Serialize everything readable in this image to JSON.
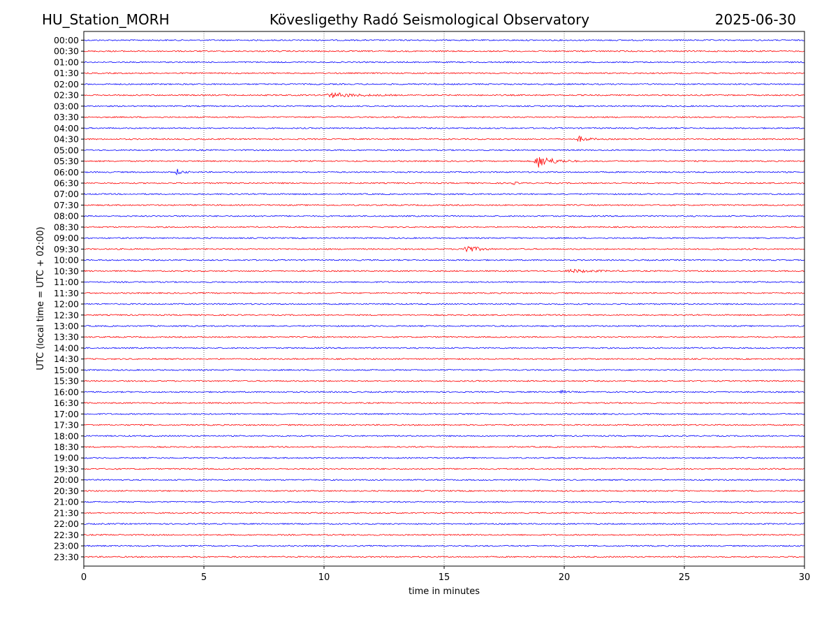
{
  "header": {
    "station": "HU_Station_MORH",
    "observatory": "Kövesligethy Radó Seismological Observatory",
    "date": "2025-06-30"
  },
  "chart_data": {
    "type": "line",
    "title": "Kövesligethy Radó Seismological Observatory",
    "xlabel": "time in minutes",
    "ylabel": "UTC (local time = UTC + 02:00)",
    "xlim": [
      0,
      30
    ],
    "x_ticks": [
      "0",
      "5",
      "10",
      "15",
      "20",
      "25",
      "30"
    ],
    "grid": "vertical dotted lines at 5-minute ticks",
    "colors": {
      "even_rows": "#0000ff",
      "odd_rows": "#ff0000"
    },
    "rows": [
      "00:00",
      "00:30",
      "01:00",
      "01:30",
      "02:00",
      "02:30",
      "03:00",
      "03:30",
      "04:00",
      "04:30",
      "05:00",
      "05:30",
      "06:00",
      "06:30",
      "07:00",
      "07:30",
      "08:00",
      "08:30",
      "09:00",
      "09:30",
      "10:00",
      "10:30",
      "11:00",
      "11:30",
      "12:00",
      "12:30",
      "13:00",
      "13:30",
      "14:00",
      "14:30",
      "15:00",
      "15:30",
      "16:00",
      "16:30",
      "17:00",
      "17:30",
      "18:00",
      "18:30",
      "19:00",
      "19:30",
      "20:00",
      "20:30",
      "21:00",
      "21:30",
      "22:00",
      "22:30",
      "23:00",
      "23:30"
    ],
    "events": [
      {
        "row": "02:30",
        "start_min": 10.0,
        "end_min": 13.0,
        "amplitude": 0.35
      },
      {
        "row": "04:30",
        "start_min": 20.5,
        "end_min": 21.5,
        "amplitude": 0.45
      },
      {
        "row": "05:30",
        "start_min": 18.7,
        "end_min": 20.5,
        "amplitude": 1.0
      },
      {
        "row": "06:00",
        "start_min": 3.8,
        "end_min": 4.5,
        "amplitude": 0.45
      },
      {
        "row": "06:30",
        "start_min": 17.8,
        "end_min": 18.3,
        "amplitude": 0.2
      },
      {
        "row": "09:30",
        "start_min": 15.7,
        "end_min": 17.0,
        "amplitude": 0.75
      },
      {
        "row": "10:30",
        "start_min": 20.0,
        "end_min": 22.5,
        "amplitude": 0.25
      },
      {
        "row": "16:00",
        "start_min": 19.8,
        "end_min": 20.5,
        "amplitude": 0.2
      }
    ]
  }
}
